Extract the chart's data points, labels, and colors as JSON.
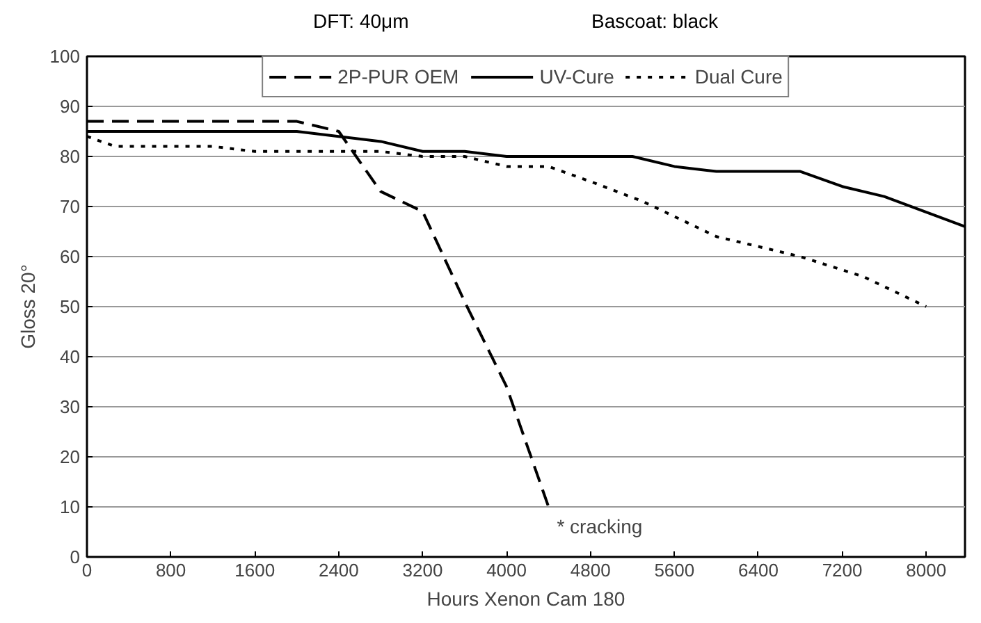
{
  "chart_data": {
    "type": "line",
    "title": "DFT: 40μm",
    "subtitle": "Bascoat: black",
    "xlabel": "Hours Xenon Cam 180",
    "ylabel": "Gloss 20°",
    "xlim": [
      0,
      8370
    ],
    "xticks": [
      0,
      800,
      1600,
      2400,
      3200,
      4000,
      4800,
      5600,
      6400,
      7200,
      8000
    ],
    "ylim": [
      0,
      100
    ],
    "yticks": [
      0,
      10,
      20,
      30,
      40,
      50,
      60,
      70,
      80,
      90,
      100
    ],
    "grid": "y",
    "legend": "top",
    "series": [
      {
        "name": "2P-PUR OEM",
        "color": "#000000",
        "line_style": "dashed",
        "x": [
          0,
          2000,
          2400,
          2800,
          3200,
          3600,
          4000,
          4400
        ],
        "values": [
          87,
          87,
          85,
          73,
          69,
          51,
          34,
          10
        ]
      },
      {
        "name": "UV-Cure",
        "color": "#000000",
        "line_style": "solid",
        "x": [
          0,
          2000,
          2400,
          2800,
          3200,
          3600,
          4000,
          4400,
          4800,
          5200,
          5600,
          6000,
          6400,
          6800,
          7200,
          7600,
          8370
        ],
        "values": [
          85,
          85,
          84,
          83,
          81,
          81,
          80,
          80,
          80,
          80,
          78,
          77,
          77,
          77,
          74,
          72,
          66
        ]
      },
      {
        "name": "Dual Cure",
        "color": "#000000",
        "line_style": "dotted",
        "x": [
          0,
          270,
          1200,
          1600,
          2800,
          3200,
          3600,
          4000,
          4400,
          4800,
          5300,
          6000,
          6800,
          7400,
          8000
        ],
        "values": [
          84,
          82,
          82,
          81,
          81,
          80,
          80,
          78,
          78,
          75,
          71,
          64,
          60,
          56,
          50
        ]
      }
    ],
    "annotations": [
      "* cracking"
    ]
  }
}
